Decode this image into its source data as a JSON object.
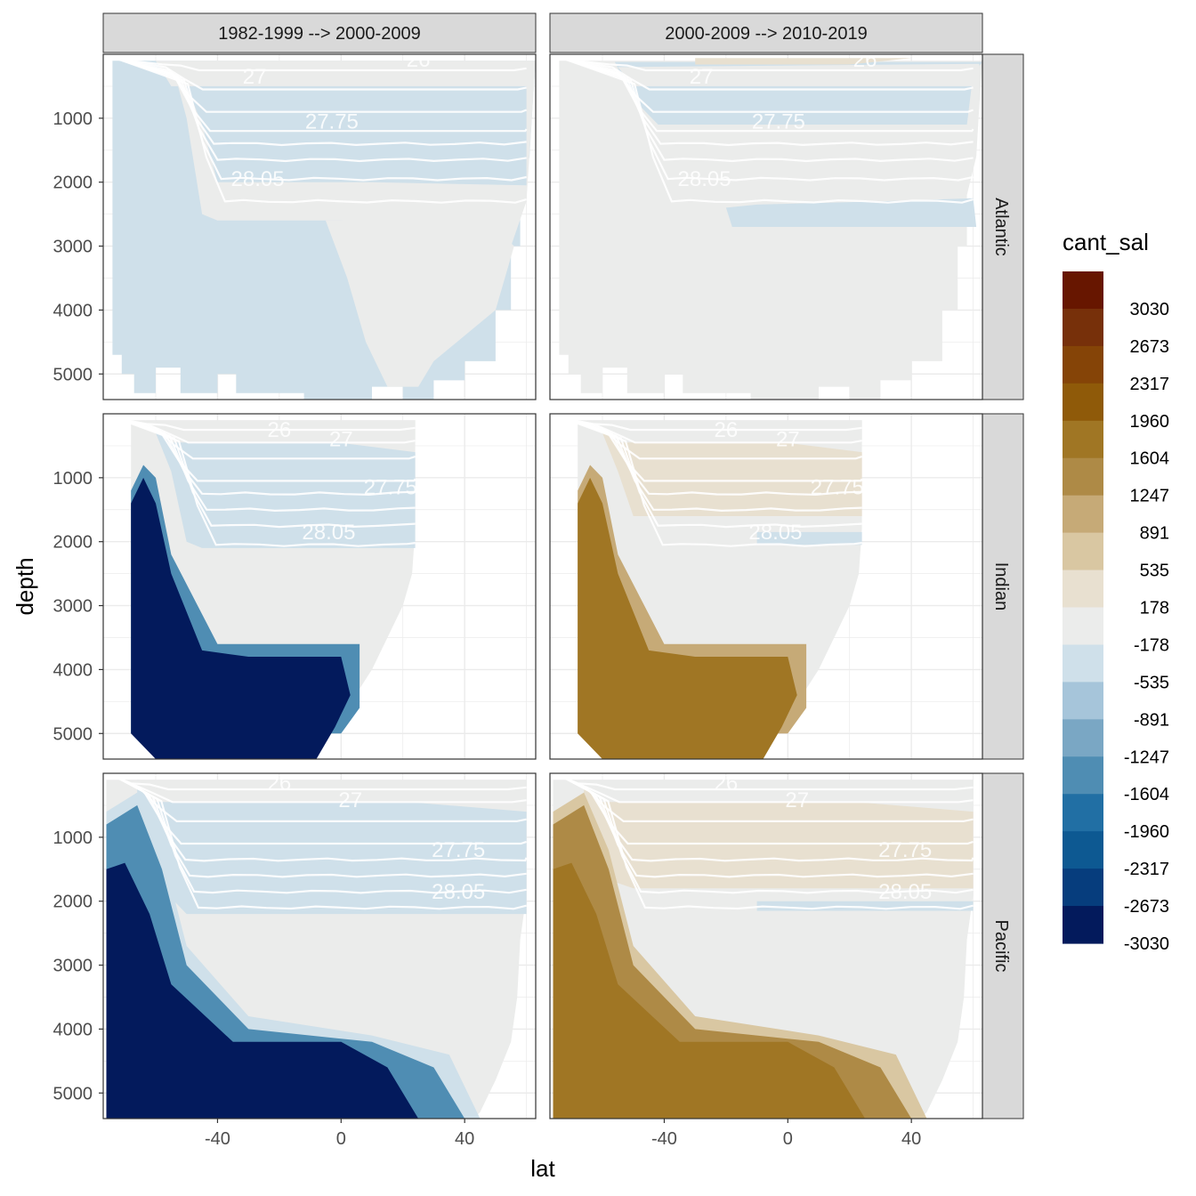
{
  "chart_data": {
    "type": "faceted-contour",
    "x_label": "lat",
    "y_label": "depth",
    "x_ticks": [
      -40,
      0,
      40
    ],
    "y_ticks": [
      1000,
      2000,
      3000,
      4000,
      5000
    ],
    "x_range": [
      -77,
      63
    ],
    "y_range": [
      5400,
      0
    ],
    "columns": [
      "1982-1999 --> 2000-2009",
      "2000-2009 --> 2010-2019"
    ],
    "rows": [
      "Atlantic",
      "Indian",
      "Pacific"
    ],
    "legend": {
      "title": "cant_sal",
      "labels": [
        "3030",
        "2673",
        "2317",
        "1960",
        "1604",
        "1247",
        "891",
        "535",
        "178",
        "-178",
        "-535",
        "-891",
        "-1247",
        "-1604",
        "-1960",
        "-2317",
        "-2673",
        "-3030"
      ],
      "colors": [
        "#671600",
        "#77300a",
        "#854407",
        "#8f5a09",
        "#a07624",
        "#ae8a46",
        "#c6aa77",
        "#d9c7a2",
        "#e8e0d0",
        "#ebeceb",
        "#cfe0ea",
        "#a6c5da",
        "#7aa7c4",
        "#4f8db3",
        "#216fa4",
        "#0d5992",
        "#063d7d",
        "#031a5c"
      ]
    },
    "contour_labels": [
      "26",
      "27",
      "27.75",
      "28.05"
    ],
    "summary": {
      "Atlantic": {
        "1982-1999 --> 2000-2009": "mostly -178 to -535",
        "2000-2009 --> 2010-2019": "mostly -178 to 178"
      },
      "Indian": {
        "1982-1999 --> 2000-2009": "deep south below -3030",
        "2000-2009 --> 2010-2019": "deep south about 1960"
      },
      "Pacific": {
        "1982-1999 --> 2000-2009": "deep south below -3030",
        "2000-2009 --> 2010-2019": "deep south about 1960"
      }
    }
  }
}
